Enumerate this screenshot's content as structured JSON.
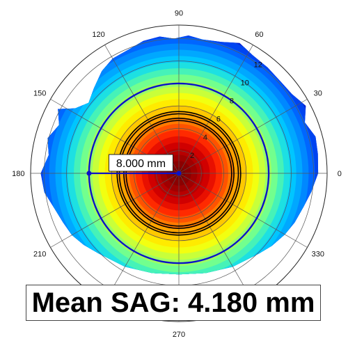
{
  "chart_data": {
    "type": "heatmap",
    "projection": "polar",
    "angle_ticks": [
      0,
      30,
      60,
      90,
      120,
      150,
      180,
      210,
      240,
      270,
      300,
      330
    ],
    "angle_tick_labels": [
      "0",
      "30",
      "60",
      "90",
      "120",
      "150",
      "180",
      "210",
      "",
      "270",
      "",
      "330"
    ],
    "radial_ticks": [
      2,
      4,
      6,
      8,
      10,
      12
    ],
    "radial_tick_labels": [
      "2",
      "4",
      "6",
      "8",
      "10",
      "12"
    ],
    "rmax": 13.2,
    "radial_tick_label_angle": 60,
    "grid": true,
    "colormap_from_center": [
      "#7a0000",
      "#8b0000",
      "#a00000",
      "#b80000",
      "#d00000",
      "#e81000",
      "#ff2a00",
      "#ff5200",
      "#ff7a00",
      "#ffa200",
      "#ffc800",
      "#ffeb00",
      "#f2ff10",
      "#c8ff3a",
      "#9dff64",
      "#72ff8e",
      "#46f2b8",
      "#1de0e2",
      "#00c6ff",
      "#00a8ff",
      "#0088ff",
      "#0066ff",
      "#0044f0",
      "#0022d0"
    ],
    "color_band_width": 0.55,
    "circles": [
      {
        "r": 4.7,
        "color": "#000000"
      },
      {
        "r": 4.9,
        "color": "#000000"
      },
      {
        "r": 5.3,
        "color": "#000000"
      },
      {
        "r": 5.5,
        "color": "#000000"
      },
      {
        "r": 8.0,
        "color": "#0b12c8"
      }
    ],
    "coverage_polygon": [
      [
        0,
        12.4
      ],
      [
        8,
        12.5
      ],
      [
        15,
        12.6
      ],
      [
        22,
        12.1
      ],
      [
        28,
        12.8
      ],
      [
        35,
        12.3
      ],
      [
        42,
        12.2
      ],
      [
        50,
        12.3
      ],
      [
        58,
        12.4
      ],
      [
        65,
        12.8
      ],
      [
        72,
        12.3
      ],
      [
        80,
        12.1
      ],
      [
        86,
        12.3
      ],
      [
        92,
        12.0
      ],
      [
        98,
        12.3
      ],
      [
        105,
        12.2
      ],
      [
        112,
        11.9
      ],
      [
        120,
        11.8
      ],
      [
        127,
        11.4
      ],
      [
        135,
        10.7
      ],
      [
        142,
        10.2
      ],
      [
        148,
        10.9
      ],
      [
        152,
        12.2
      ],
      [
        158,
        11.5
      ],
      [
        165,
        12.1
      ],
      [
        172,
        11.7
      ],
      [
        180,
        12.3
      ],
      [
        188,
        12.1
      ],
      [
        196,
        11.5
      ],
      [
        203,
        11.2
      ],
      [
        210,
        11.0
      ],
      [
        217,
        10.6
      ],
      [
        225,
        10.1
      ],
      [
        240,
        9.6
      ],
      [
        255,
        9.2
      ],
      [
        270,
        9.0
      ],
      [
        285,
        9.2
      ],
      [
        300,
        9.6
      ],
      [
        315,
        10.1
      ],
      [
        322,
        10.5
      ],
      [
        330,
        10.9
      ],
      [
        337,
        11.2
      ],
      [
        345,
        11.5
      ],
      [
        352,
        11.9
      ]
    ],
    "annotation": {
      "label": "8.000 mm",
      "from": [
        0,
        0
      ],
      "to": [
        180,
        8.0
      ],
      "color": "#0b12c8"
    },
    "mean_label": "Mean SAG: 4.180 mm"
  }
}
